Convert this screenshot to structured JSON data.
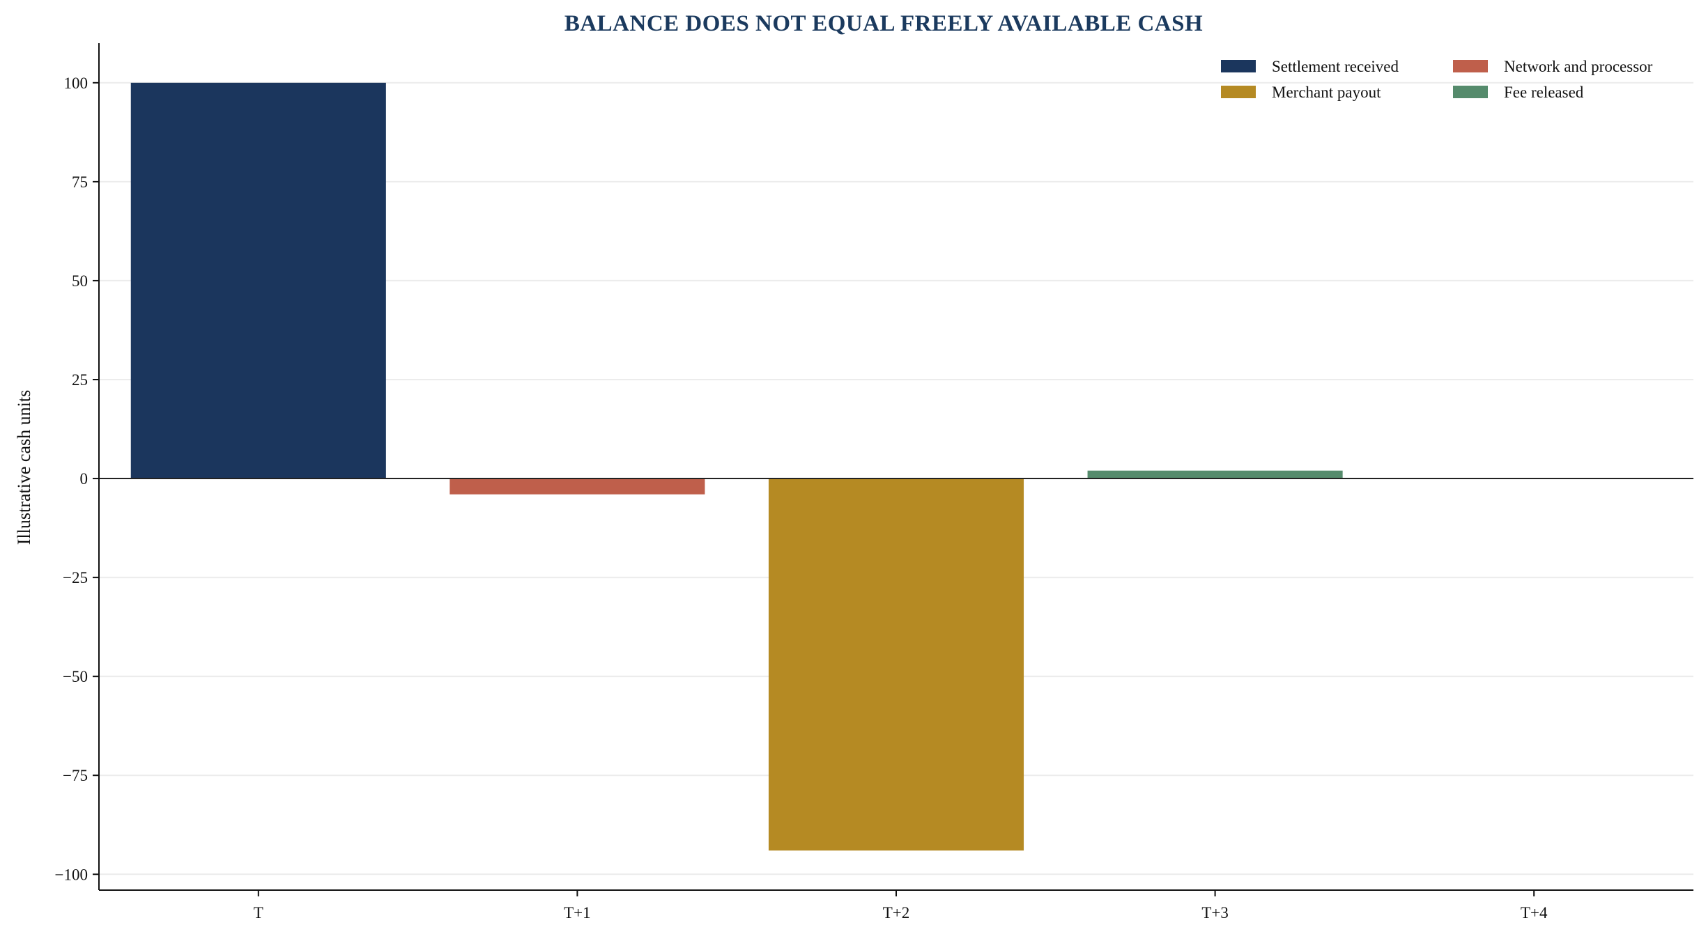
{
  "chart_data": {
    "type": "bar",
    "title": "BALANCE DOES NOT EQUAL FREELY AVAILABLE CASH",
    "xlabel": "",
    "ylabel": "Illustrative cash units",
    "categories": [
      "T",
      "T+1",
      "T+2",
      "T+3",
      "T+4"
    ],
    "ylim": [
      -104,
      110
    ],
    "yticks": [
      100,
      75,
      50,
      25,
      0,
      -25,
      -50,
      -75,
      -100
    ],
    "ytick_labels": [
      "100",
      "75",
      "50",
      "25",
      "0",
      "−25",
      "−50",
      "−75",
      "−100"
    ],
    "grid": true,
    "legend_position": "top-right",
    "legend": [
      {
        "name": "Settlement received",
        "color": "#1b365d"
      },
      {
        "name": "Network and processor",
        "color": "#bf5f4b"
      },
      {
        "name": "Merchant payout",
        "color": "#b58a23"
      },
      {
        "name": "Fee released",
        "color": "#558b6c"
      }
    ],
    "bars": [
      {
        "category": "T",
        "series": "Settlement received",
        "value": 100,
        "color": "#1b365d"
      },
      {
        "category": "T+1",
        "series": "Network and processor",
        "value": -4,
        "color": "#bf5f4b"
      },
      {
        "category": "T+2",
        "series": "Merchant payout",
        "value": -94,
        "color": "#b58a23"
      },
      {
        "category": "T+3",
        "series": "Fee released",
        "value": 2,
        "color": "#558b6c"
      },
      {
        "category": "T+4",
        "series": "",
        "value": 0,
        "color": "#ffffff"
      }
    ]
  }
}
